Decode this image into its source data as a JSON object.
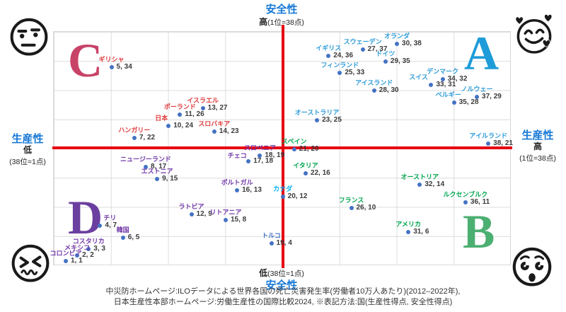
{
  "chart_data": {
    "type": "scatter",
    "title": "",
    "x_axis": {
      "title": "生産性",
      "low_label": "低",
      "low_note": "(38位=1点)",
      "high_label": "高",
      "high_note": "(1位=38点)",
      "range": [
        1,
        38
      ]
    },
    "y_axis": {
      "title": "安全性",
      "low_label": "低",
      "low_note": "(38位=1点)",
      "high_label": "高",
      "high_note": "(1位=38点)",
      "range": [
        1,
        38
      ]
    },
    "grid": true,
    "axis_color": "#e60012",
    "dot_color": "#4472c4",
    "value_format": "国(生産性得点, 安全性得点)",
    "quadrants": [
      {
        "letter": "A",
        "position": "top-right",
        "color": "#1e9cd9"
      },
      {
        "letter": "B",
        "position": "bottom-right",
        "color": "#4caf72"
      },
      {
        "letter": "C",
        "position": "top-left",
        "color": "#c84368"
      },
      {
        "letter": "D",
        "position": "bottom-left",
        "color": "#6b3fa0"
      }
    ],
    "points": [
      {
        "name": "オランダ",
        "productivity": 30,
        "safety": 38,
        "group": "A",
        "color": "#2d9cd8"
      },
      {
        "name": "スウェーデン",
        "productivity": 27,
        "safety": 37,
        "group": "A",
        "color": "#2d9cd8"
      },
      {
        "name": "イギリス",
        "productivity": 24,
        "safety": 36,
        "group": "A",
        "color": "#2d9cd8"
      },
      {
        "name": "ドイツ",
        "productivity": 29,
        "safety": 35,
        "group": "A",
        "color": "#2d9cd8"
      },
      {
        "name": "フィンランド",
        "productivity": 25,
        "safety": 33,
        "group": "A",
        "color": "#2d9cd8"
      },
      {
        "name": "デンマーク",
        "productivity": 34,
        "safety": 32,
        "group": "A",
        "color": "#2d9cd8"
      },
      {
        "name": "スイス",
        "productivity": 33,
        "safety": 31,
        "group": "A",
        "color": "#2d9cd8",
        "name_dx": -18
      },
      {
        "name": "アイスランド",
        "productivity": 28,
        "safety": 30,
        "group": "A",
        "color": "#2d9cd8"
      },
      {
        "name": "ノルウェー",
        "productivity": 37,
        "safety": 29,
        "group": "A",
        "color": "#2d9cd8"
      },
      {
        "name": "ベルギー",
        "productivity": 35,
        "safety": 28,
        "group": "A",
        "color": "#2d9cd8",
        "name_dx": -8
      },
      {
        "name": "オーストラリア",
        "productivity": 23,
        "safety": 25,
        "group": "A",
        "color": "#2d9cd8"
      },
      {
        "name": "アイルランド",
        "productivity": 38,
        "safety": 21,
        "group": "A",
        "color": "#2d9cd8"
      },
      {
        "name": "ギリシャ",
        "productivity": 5,
        "safety": 34,
        "group": "C",
        "color": "#e03a3c"
      },
      {
        "name": "イスラエル",
        "productivity": 13,
        "safety": 27,
        "group": "C",
        "color": "#e03a3c"
      },
      {
        "name": "ポーランド",
        "productivity": 11,
        "safety": 26,
        "group": "C",
        "color": "#e03a3c"
      },
      {
        "name": "日本",
        "productivity": 10,
        "safety": 24,
        "group": "C",
        "color": "#e03a3c",
        "emphasis": true,
        "name_dx": -10
      },
      {
        "name": "スロバキア",
        "productivity": 14,
        "safety": 23,
        "group": "C",
        "color": "#e03a3c"
      },
      {
        "name": "ハンガリー",
        "productivity": 7,
        "safety": 22,
        "group": "C",
        "color": "#e03a3c"
      },
      {
        "name": "スペイン",
        "productivity": 21,
        "safety": 20,
        "group": "B",
        "color": "#00a650"
      },
      {
        "name": "イタリア",
        "productivity": 22,
        "safety": 16,
        "group": "B",
        "color": "#00a650"
      },
      {
        "name": "オーストリア",
        "productivity": 32,
        "safety": 14,
        "group": "B",
        "color": "#00a650"
      },
      {
        "name": "ルクセンブルク",
        "productivity": 36,
        "safety": 11,
        "group": "B",
        "color": "#00a650"
      },
      {
        "name": "フランス",
        "productivity": 26,
        "safety": 10,
        "group": "B",
        "color": "#00a650"
      },
      {
        "name": "アメリカ",
        "productivity": 31,
        "safety": 6,
        "group": "B",
        "color": "#00a650"
      },
      {
        "name": "スロベニア",
        "productivity": 18,
        "safety": 19,
        "group": "D",
        "color": "#7238a8"
      },
      {
        "name": "チェコ",
        "productivity": 17,
        "safety": 18,
        "group": "D",
        "color": "#7238a8",
        "name_dx": -16,
        "name_dy": 3
      },
      {
        "name": "ニュージーランド",
        "productivity": 8,
        "safety": 17,
        "group": "D",
        "color": "#7238a8"
      },
      {
        "name": "エストニア",
        "productivity": 9,
        "safety": 15,
        "group": "D",
        "color": "#7238a8"
      },
      {
        "name": "ポルトガル",
        "productivity": 16,
        "safety": 13,
        "group": "D",
        "color": "#7238a8"
      },
      {
        "name": "ラトビア",
        "productivity": 12,
        "safety": 9,
        "group": "D",
        "color": "#7238a8"
      },
      {
        "name": "リトアニア",
        "productivity": 15,
        "safety": 8,
        "group": "D",
        "color": "#7238a8"
      },
      {
        "name": "チリ",
        "productivity": 4,
        "safety": 7,
        "group": "D",
        "color": "#7238a8",
        "name_dx": 14
      },
      {
        "name": "韓国",
        "productivity": 6,
        "safety": 5,
        "group": "D",
        "color": "#7238a8"
      },
      {
        "name": "コスタリカ",
        "productivity": 3,
        "safety": 3,
        "group": "D",
        "color": "#7238a8"
      },
      {
        "name": "メキシコ",
        "productivity": 2,
        "safety": 2,
        "group": "D",
        "color": "#7238a8"
      },
      {
        "name": "コロンビア",
        "productivity": 1,
        "safety": 1,
        "group": "D",
        "color": "#7238a8"
      },
      {
        "name": "カナダ",
        "productivity": 20,
        "safety": 12,
        "group": "other",
        "color": "#00b0f0"
      },
      {
        "name": "トルコ",
        "productivity": 19,
        "safety": 4,
        "group": "other",
        "color": "#4472c4"
      }
    ]
  },
  "emojis": {
    "top_left": "neutral-face",
    "top_right": "smiling-face-with-hearts",
    "bottom_left": "confounded-face",
    "bottom_right": "dizzy-face"
  },
  "footer": {
    "line1": "中災防ホームページ:ILOデータによる世界各国の死亡災害発生率(労働者10万人あたり)(2012–2022年),",
    "line2": "日本生産性本部ホームページ:労働生産性の国際比較2024, ※表記方法:国(生産性得点, 安全性得点)"
  }
}
